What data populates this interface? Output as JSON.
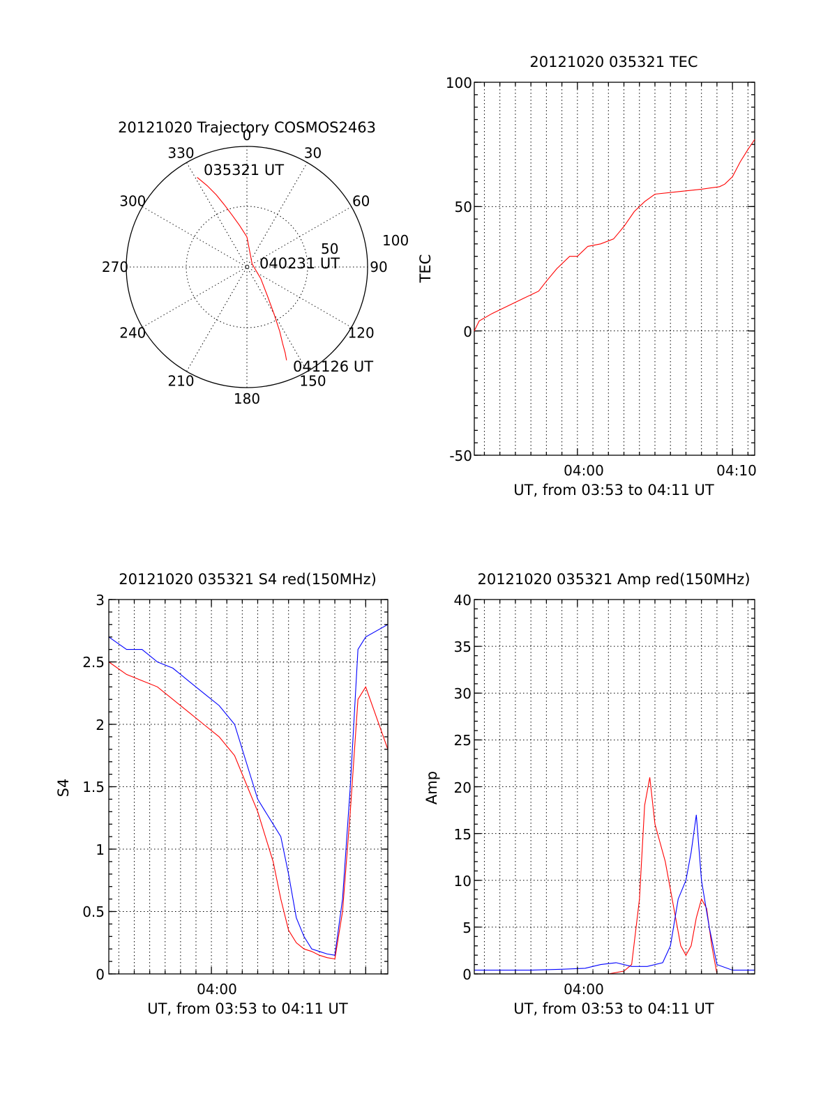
{
  "chart_data": [
    {
      "type": "polar",
      "title": "20121020 Trajectory COSMOS2463",
      "azimuth_labels": [
        "0",
        "30",
        "60",
        "90",
        "120",
        "150",
        "180",
        "210",
        "240",
        "270",
        "300",
        "330"
      ],
      "radial_tick_labels": [
        "50",
        "100"
      ],
      "radial_range": [
        0,
        100
      ],
      "grid": true,
      "annotations": [
        {
          "text": "035321 UT",
          "azimuth": 331,
          "elevation_r": 85
        },
        {
          "text": "040231 UT",
          "azimuth": 95,
          "elevation_r": 2
        },
        {
          "text": "041126 UT",
          "azimuth": 157,
          "elevation_r": 84
        }
      ],
      "trajectory": {
        "color": "#ff0000",
        "azimuth": [
          331,
          334,
          337,
          340,
          344,
          350,
          360,
          60,
          130,
          145,
          150,
          153,
          155,
          156,
          157
        ],
        "r": [
          85,
          75,
          65,
          55,
          45,
          35,
          25,
          5,
          15,
          30,
          45,
          60,
          70,
          78,
          84
        ]
      }
    },
    {
      "type": "line",
      "title": "20121020 035321 TEC",
      "xlabel": "UT, from 03:53 to 04:11 UT",
      "ylabel": "TEC",
      "xlim": [
        "03:53:21",
        "04:11:26"
      ],
      "ylim": [
        -50,
        100
      ],
      "x_tick_labels": [
        "04:00",
        "04:10"
      ],
      "y_tick_labels": [
        "-50",
        "0",
        "50",
        "100"
      ],
      "grid": true,
      "series": [
        {
          "color": "#ff0000",
          "x": [
            "03:53:21",
            "03:53:40",
            "03:54:30",
            "03:55:30",
            "03:56:30",
            "03:57:30",
            "03:58:00",
            "03:58:40",
            "03:59:30",
            "04:00:00",
            "04:00:40",
            "04:01:30",
            "04:02:20",
            "04:03:00",
            "04:03:40",
            "04:04:20",
            "04:05:00",
            "04:06:30",
            "04:08:00",
            "04:09:10",
            "04:09:30",
            "04:10:00",
            "04:10:30",
            "04:11:00",
            "04:11:26"
          ],
          "y": [
            0,
            4,
            7,
            10,
            13,
            16,
            20,
            25,
            30,
            30,
            34,
            35,
            37,
            42,
            48,
            52,
            55,
            56,
            57,
            58,
            59,
            62,
            68,
            73,
            77
          ]
        }
      ]
    },
    {
      "type": "line",
      "title": "20121020 035321 S4 red(150MHz)",
      "xlabel": "UT, from 03:53 to 04:11 UT",
      "ylabel": "S4",
      "xlim": [
        "03:53:21",
        "04:11:26"
      ],
      "ylim": [
        0,
        3
      ],
      "x_tick_labels": [
        "04:00"
      ],
      "y_tick_labels": [
        "0",
        "0.5",
        "1",
        "1.5",
        "2",
        "2.5",
        "3"
      ],
      "grid": true,
      "series": [
        {
          "color": "#0000ff",
          "x": [
            "03:53:21",
            "03:54:30",
            "03:55:30",
            "03:56:30",
            "03:57:30",
            "03:58:30",
            "03:59:30",
            "04:00:30",
            "04:01:30",
            "04:02:30",
            "04:03:00",
            "04:03:30",
            "04:04:00",
            "04:04:30",
            "04:05:00",
            "04:05:30",
            "04:06:00",
            "04:06:30",
            "04:07:00",
            "04:07:30",
            "04:08:00",
            "04:08:30",
            "04:09:00",
            "04:09:30",
            "04:10:00",
            "04:11:26"
          ],
          "y": [
            2.7,
            2.6,
            2.6,
            2.5,
            2.45,
            2.35,
            2.25,
            2.15,
            2.0,
            1.6,
            1.4,
            1.3,
            1.2,
            1.1,
            0.8,
            0.45,
            0.3,
            0.2,
            0.18,
            0.16,
            0.15,
            0.6,
            1.5,
            2.6,
            2.7,
            2.8
          ]
        },
        {
          "color": "#ff0000",
          "x": [
            "03:53:21",
            "03:54:30",
            "03:55:30",
            "03:56:30",
            "03:57:30",
            "03:58:30",
            "03:59:30",
            "04:00:30",
            "04:01:30",
            "04:02:30",
            "04:03:00",
            "04:03:30",
            "04:04:00",
            "04:04:30",
            "04:05:00",
            "04:05:30",
            "04:06:00",
            "04:06:30",
            "04:07:00",
            "04:07:30",
            "04:08:00",
            "04:08:30",
            "04:09:00",
            "04:09:30",
            "04:10:00",
            "04:11:26"
          ],
          "y": [
            2.5,
            2.4,
            2.35,
            2.3,
            2.2,
            2.1,
            2.0,
            1.9,
            1.75,
            1.45,
            1.3,
            1.1,
            0.9,
            0.6,
            0.35,
            0.25,
            0.2,
            0.18,
            0.15,
            0.13,
            0.12,
            0.5,
            1.3,
            2.2,
            2.3,
            1.8
          ]
        }
      ]
    },
    {
      "type": "line",
      "title": "20121020 035321 Amp red(150MHz)",
      "xlabel": "UT, from 03:53 to 04:11 UT",
      "ylabel": "Amp",
      "xlim": [
        "03:53:21",
        "04:11:26"
      ],
      "ylim": [
        0,
        40
      ],
      "x_tick_labels": [
        "04:00"
      ],
      "y_tick_labels": [
        "0",
        "5",
        "10",
        "15",
        "20",
        "25",
        "30",
        "35",
        "40"
      ],
      "grid": true,
      "series": [
        {
          "color": "#ff0000",
          "x": [
            "03:53:21",
            "04:02:00",
            "04:03:00",
            "04:03:30",
            "04:04:00",
            "04:04:20",
            "04:04:40",
            "04:05:00",
            "04:05:20",
            "04:05:40",
            "04:06:00",
            "04:06:20",
            "04:06:40",
            "04:07:00",
            "04:07:20",
            "04:07:40",
            "04:08:00",
            "04:08:20",
            "04:08:40",
            "04:09:00",
            "04:11:26"
          ],
          "y": [
            0,
            0,
            0.3,
            1,
            8,
            18,
            21,
            16,
            14,
            12,
            9,
            6,
            3,
            2,
            3,
            6,
            8,
            7,
            3,
            0,
            0
          ]
        },
        {
          "color": "#0000ff",
          "x": [
            "03:53:21",
            "03:55:00",
            "03:57:00",
            "03:59:00",
            "04:00:30",
            "04:01:30",
            "04:02:30",
            "04:03:30",
            "04:04:30",
            "04:05:30",
            "04:06:00",
            "04:06:30",
            "04:07:00",
            "04:07:20",
            "04:07:40",
            "04:08:00",
            "04:08:30",
            "04:09:00",
            "04:10:00",
            "04:11:26"
          ],
          "y": [
            0.4,
            0.4,
            0.4,
            0.5,
            0.6,
            1.0,
            1.2,
            0.8,
            0.8,
            1.2,
            3,
            8,
            10,
            13,
            17,
            10,
            5,
            1,
            0.4,
            0.4
          ]
        }
      ]
    }
  ]
}
